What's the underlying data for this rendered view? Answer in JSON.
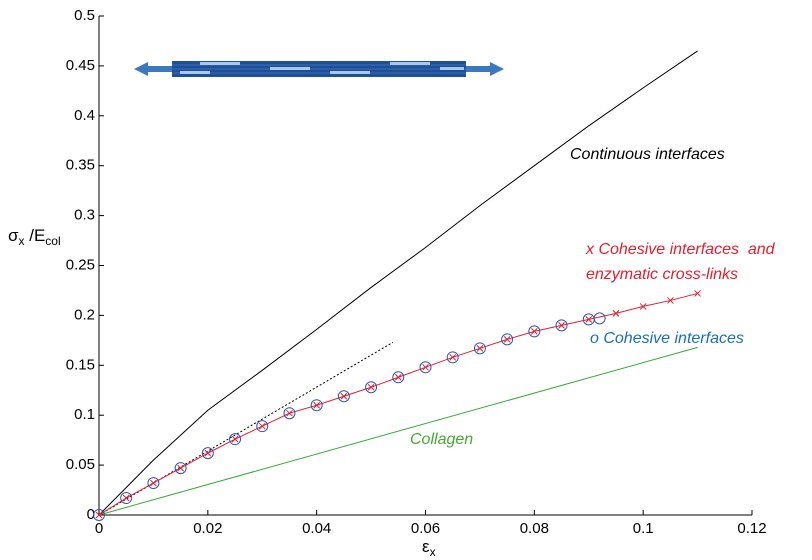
{
  "chart_data": {
    "type": "line",
    "xlabel": [
      "ε",
      "x"
    ],
    "ylabel": [
      "σ",
      "x",
      " /E",
      "col"
    ],
    "xlim": [
      0,
      0.12
    ],
    "ylim": [
      0,
      0.5
    ],
    "xticks": [
      0,
      0.02,
      0.04,
      0.06,
      0.08,
      0.1,
      0.12
    ],
    "yticks": [
      0,
      0.05,
      0.1,
      0.15,
      0.2,
      0.25,
      0.3,
      0.35,
      0.4,
      0.45,
      0.5
    ],
    "series": [
      {
        "color": "#000000",
        "marker": "none",
        "dash": "solid",
        "x": [
          0,
          0.01,
          0.02,
          0.03,
          0.04,
          0.05,
          0.06,
          0.07,
          0.08,
          0.09,
          0.1,
          0.11
        ],
        "values": [
          0,
          0.055,
          0.105,
          0.145,
          0.186,
          0.228,
          0.268,
          0.31,
          0.35,
          0.39,
          0.428,
          0.465
        ]
      },
      {
        "color": "#000000",
        "marker": "none",
        "dash": "dotted",
        "x": [
          0,
          0.054
        ],
        "values": [
          0,
          0.173
        ]
      },
      {
        "color": "#33aa33",
        "marker": "none",
        "dash": "solid",
        "x": [
          0,
          0.11
        ],
        "values": [
          0,
          0.168
        ]
      },
      {
        "color": "#e02030",
        "marker": "x",
        "dash": "solid",
        "x": [
          0,
          0.005,
          0.01,
          0.015,
          0.02,
          0.025,
          0.03,
          0.035,
          0.04,
          0.045,
          0.05,
          0.055,
          0.06,
          0.065,
          0.07,
          0.075,
          0.08,
          0.085,
          0.09,
          0.095,
          0.1,
          0.105,
          0.11
        ],
        "values": [
          0,
          0.017,
          0.032,
          0.047,
          0.062,
          0.076,
          0.089,
          0.102,
          0.11,
          0.119,
          0.128,
          0.138,
          0.148,
          0.158,
          0.167,
          0.176,
          0.184,
          0.19,
          0.196,
          0.202,
          0.209,
          0.215,
          0.222
        ]
      },
      {
        "color": "#3355aa",
        "marker": "o",
        "dash": "none",
        "x": [
          0,
          0.005,
          0.01,
          0.015,
          0.02,
          0.025,
          0.03,
          0.035,
          0.04,
          0.045,
          0.05,
          0.055,
          0.06,
          0.065,
          0.07,
          0.075,
          0.08,
          0.085,
          0.09,
          0.092
        ],
        "values": [
          0,
          0.017,
          0.032,
          0.047,
          0.062,
          0.076,
          0.089,
          0.102,
          0.11,
          0.119,
          0.128,
          0.138,
          0.148,
          0.158,
          0.167,
          0.176,
          0.184,
          0.19,
          0.196,
          0.197
        ]
      }
    ],
    "annotations": [
      {
        "text": "Continuous interfaces",
        "color": "#000000"
      },
      {
        "text": "x Cohesive interfaces  and",
        "color": "#e02030"
      },
      {
        "text": "enzymatic cross-links",
        "color": "#e02030"
      },
      {
        "text": "o Cohesive interfaces",
        "color": "#1a6fb5"
      },
      {
        "text": "Collagen",
        "color": "#44aa33"
      }
    ]
  }
}
